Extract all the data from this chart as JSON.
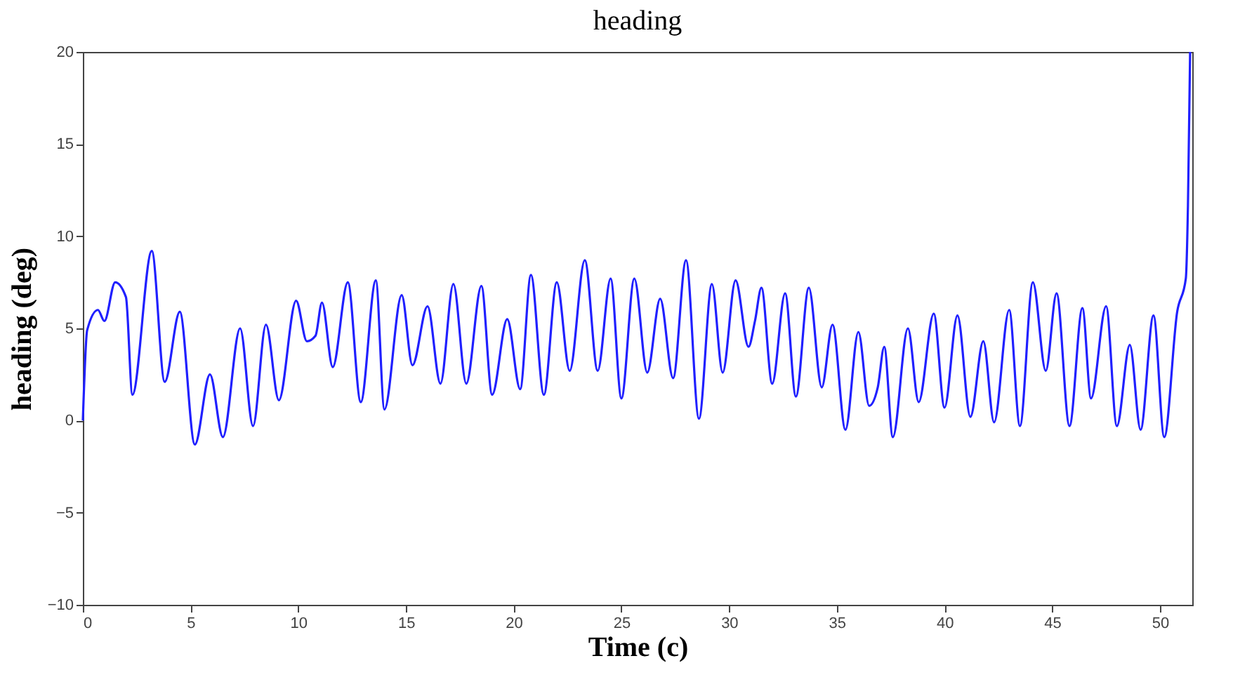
{
  "chart_data": {
    "type": "line",
    "title": "heading",
    "xlabel": "Time (c)",
    "ylabel": "heading (deg)",
    "xlim": [
      0,
      51.5
    ],
    "ylim": [
      -10,
      20
    ],
    "xticks": [
      0,
      5,
      10,
      15,
      20,
      25,
      30,
      35,
      40,
      45,
      50
    ],
    "yticks": [
      -10,
      -5,
      0,
      5,
      10,
      15,
      20
    ],
    "grid": false,
    "marker": "none",
    "line_style": "solid",
    "series": [
      {
        "color": "#2020ff",
        "x": [
          0,
          0.2,
          0.7,
          1.0,
          1.5,
          2.0,
          2.3,
          3.2,
          3.8,
          4.5,
          5.2,
          5.9,
          6.5,
          7.3,
          7.9,
          8.5,
          9.1,
          9.9,
          10.4,
          10.8,
          11.1,
          11.6,
          12.3,
          12.9,
          13.6,
          14.0,
          14.8,
          15.3,
          16.0,
          16.6,
          17.2,
          17.8,
          18.5,
          19.0,
          19.7,
          20.3,
          20.8,
          21.4,
          22.0,
          22.6,
          23.3,
          23.9,
          24.5,
          25.0,
          25.6,
          26.2,
          26.8,
          27.4,
          28.0,
          28.6,
          29.2,
          29.7,
          30.3,
          30.9,
          31.2,
          31.5,
          32.0,
          32.6,
          33.1,
          33.7,
          34.3,
          34.8,
          35.4,
          36.0,
          36.5,
          36.9,
          37.2,
          37.6,
          38.3,
          38.8,
          39.5,
          40.0,
          40.6,
          41.2,
          41.8,
          42.3,
          43.0,
          43.5,
          44.1,
          44.7,
          45.2,
          45.8,
          46.4,
          46.8,
          47.5,
          48.0,
          48.6,
          49.1,
          49.7,
          50.2,
          50.8,
          51.2,
          51.3,
          51.4
        ],
        "values": [
          0,
          4.9,
          6.0,
          5.4,
          7.5,
          6.7,
          1.4,
          9.2,
          2.1,
          5.9,
          -1.3,
          2.5,
          -0.9,
          5.0,
          -0.3,
          5.2,
          1.1,
          6.5,
          4.3,
          4.6,
          6.4,
          2.9,
          7.5,
          1.0,
          7.6,
          0.6,
          6.8,
          3.0,
          6.2,
          2.0,
          7.4,
          2.0,
          7.3,
          1.4,
          5.5,
          1.7,
          7.9,
          1.4,
          7.5,
          2.7,
          8.7,
          2.7,
          7.7,
          1.2,
          7.7,
          2.6,
          6.6,
          2.3,
          8.7,
          0.1,
          7.4,
          2.6,
          7.6,
          4.0,
          5.4,
          7.2,
          2.0,
          6.9,
          1.3,
          7.2,
          1.8,
          5.2,
          -0.5,
          4.8,
          0.8,
          1.8,
          4.0,
          -0.9,
          5.0,
          1.0,
          5.8,
          0.7,
          5.7,
          0.2,
          4.3,
          -0.1,
          6.0,
          -0.3,
          7.5,
          2.7,
          6.9,
          -0.3,
          6.1,
          1.2,
          6.2,
          -0.3,
          4.1,
          -0.5,
          5.7,
          -0.9,
          5.9,
          7.7,
          11.7,
          20
        ]
      }
    ]
  }
}
